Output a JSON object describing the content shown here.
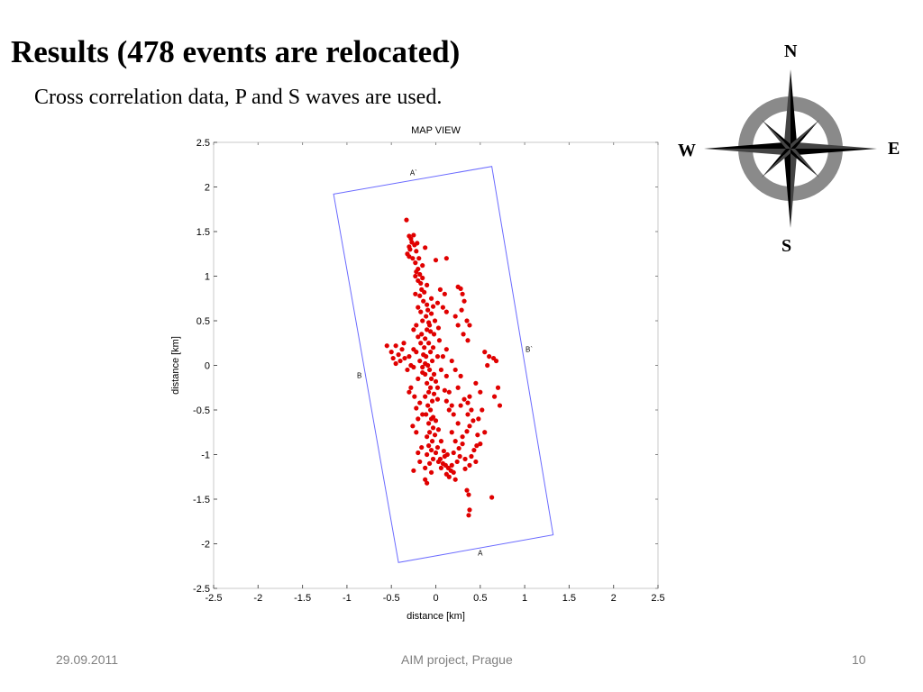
{
  "slide": {
    "title": "Results (478 events are relocated)",
    "subtitle": "Cross correlation data, P and S waves are used."
  },
  "compass": {
    "north": "N",
    "south": "S",
    "east": "E",
    "west": "W"
  },
  "footer": {
    "date": "29.09.2011",
    "project": "AIM project, Prague",
    "page": "10"
  },
  "chart_data": {
    "type": "scatter",
    "title": "MAP VIEW",
    "xlabel": "distance [km]",
    "ylabel": "distance [km]",
    "xlim": [
      -2.5,
      2.5
    ],
    "ylim": [
      -2.5,
      2.5
    ],
    "xticks": [
      "-2.5",
      "-2",
      "-1.5",
      "-1",
      "-0.5",
      "0",
      "0.5",
      "1",
      "1.5",
      "2",
      "2.5"
    ],
    "yticks": [
      "2.5",
      "2",
      "1.5",
      "1",
      "0.5",
      "0",
      "-0.5",
      "-1",
      "-1.5",
      "-2",
      "-2.5"
    ],
    "grid": false,
    "point_color": "#e00000",
    "box_color": "#6a6aff",
    "profile_box": [
      [
        -1.15,
        1.92
      ],
      [
        0.63,
        2.23
      ],
      [
        1.32,
        -1.9
      ],
      [
        -0.42,
        -2.21
      ]
    ],
    "box_labels": [
      {
        "text": "A`",
        "x": -0.25,
        "y": 2.13
      },
      {
        "text": "B`",
        "x": 1.05,
        "y": 0.15
      },
      {
        "text": "B",
        "x": -0.86,
        "y": -0.14
      },
      {
        "text": "A",
        "x": 0.5,
        "y": -2.13
      }
    ],
    "points": [
      [
        -0.33,
        1.63
      ],
      [
        -0.3,
        1.45
      ],
      [
        -0.28,
        1.42
      ],
      [
        -0.27,
        1.38
      ],
      [
        -0.25,
        1.46
      ],
      [
        -0.24,
        1.35
      ],
      [
        -0.29,
        1.3
      ],
      [
        -0.22,
        1.28
      ],
      [
        -0.3,
        1.22
      ],
      [
        -0.26,
        1.2
      ],
      [
        -0.23,
        1.15
      ],
      [
        -0.21,
        1.37
      ],
      [
        -0.19,
        1.2
      ],
      [
        -0.2,
        1.08
      ],
      [
        -0.22,
        1.05
      ],
      [
        -0.18,
        1.02
      ],
      [
        -0.15,
        0.98
      ],
      [
        -0.2,
        0.95
      ],
      [
        -0.17,
        0.92
      ],
      [
        -0.12,
        1.32
      ],
      [
        0.0,
        1.18
      ],
      [
        0.12,
        1.2
      ],
      [
        -0.16,
        0.85
      ],
      [
        -0.23,
        0.8
      ],
      [
        -0.18,
        0.78
      ],
      [
        -0.14,
        0.72
      ],
      [
        -0.2,
        0.65
      ],
      [
        -0.09,
        0.62
      ],
      [
        -0.05,
        0.58
      ],
      [
        -0.11,
        0.55
      ],
      [
        -0.08,
        0.48
      ],
      [
        -0.15,
        0.5
      ],
      [
        -0.22,
        0.45
      ],
      [
        -0.1,
        0.4
      ],
      [
        -0.16,
        0.35
      ],
      [
        -0.12,
        0.3
      ],
      [
        -0.08,
        0.25
      ],
      [
        -0.13,
        0.2
      ],
      [
        -0.06,
        0.15
      ],
      [
        -0.11,
        0.1
      ],
      [
        -0.04,
        0.05
      ],
      [
        -0.09,
        0.0
      ],
      [
        -0.07,
        -0.05
      ],
      [
        -0.12,
        -0.1
      ],
      [
        -0.05,
        -0.15
      ],
      [
        -0.1,
        -0.2
      ],
      [
        -0.06,
        -0.25
      ],
      [
        -0.08,
        -0.3
      ],
      [
        -0.12,
        -0.35
      ],
      [
        -0.04,
        -0.4
      ],
      [
        -0.09,
        -0.45
      ],
      [
        -0.06,
        -0.5
      ],
      [
        -0.11,
        -0.55
      ],
      [
        -0.05,
        -0.6
      ],
      [
        -0.08,
        -0.65
      ],
      [
        -0.03,
        -0.7
      ],
      [
        -0.07,
        -0.75
      ],
      [
        -0.1,
        -0.8
      ],
      [
        -0.04,
        -0.85
      ],
      [
        -0.08,
        -0.9
      ],
      [
        -0.05,
        -0.95
      ],
      [
        -0.1,
        -1.0
      ],
      [
        -0.03,
        -1.05
      ],
      [
        -0.07,
        -1.1
      ],
      [
        -0.12,
        -1.15
      ],
      [
        -0.05,
        -1.2
      ],
      [
        0.05,
        -1.05
      ],
      [
        0.08,
        -1.1
      ],
      [
        0.11,
        -1.12
      ],
      [
        0.14,
        -1.15
      ],
      [
        0.17,
        -1.18
      ],
      [
        0.2,
        -1.2
      ],
      [
        0.15,
        -1.25
      ],
      [
        0.22,
        -1.28
      ],
      [
        0.1,
        -1.02
      ],
      [
        0.0,
        -0.98
      ],
      [
        0.03,
        -1.08
      ],
      [
        -0.12,
        -1.28
      ],
      [
        -0.1,
        -1.32
      ],
      [
        0.35,
        -1.4
      ],
      [
        0.37,
        -1.45
      ],
      [
        0.38,
        -1.62
      ],
      [
        0.37,
        -1.68
      ],
      [
        0.63,
        -1.48
      ],
      [
        0.25,
        0.88
      ],
      [
        0.28,
        0.86
      ],
      [
        0.3,
        0.8
      ],
      [
        0.32,
        0.72
      ],
      [
        0.29,
        0.62
      ],
      [
        0.22,
        0.55
      ],
      [
        0.35,
        0.5
      ],
      [
        0.38,
        0.45
      ],
      [
        0.31,
        0.35
      ],
      [
        0.36,
        0.28
      ],
      [
        0.25,
        0.45
      ],
      [
        0.05,
        0.85
      ],
      [
        0.1,
        0.8
      ],
      [
        0.02,
        0.7
      ],
      [
        0.08,
        0.65
      ],
      [
        0.12,
        0.6
      ],
      [
        -0.01,
        0.5
      ],
      [
        0.03,
        0.42
      ],
      [
        -0.02,
        0.35
      ],
      [
        0.04,
        0.28
      ],
      [
        -0.45,
        0.22
      ],
      [
        -0.38,
        0.18
      ],
      [
        -0.42,
        0.12
      ],
      [
        -0.35,
        0.08
      ],
      [
        -0.4,
        0.05
      ],
      [
        -0.3,
        0.1
      ],
      [
        -0.28,
        0.0
      ],
      [
        -0.32,
        -0.05
      ],
      [
        -0.25,
        -0.02
      ],
      [
        -0.36,
        0.25
      ],
      [
        -0.55,
        0.22
      ],
      [
        -0.5,
        0.15
      ],
      [
        -0.48,
        0.08
      ],
      [
        -0.45,
        0.02
      ],
      [
        0.55,
        0.15
      ],
      [
        0.6,
        0.1
      ],
      [
        0.65,
        0.08
      ],
      [
        0.58,
        0.0
      ],
      [
        0.68,
        0.05
      ],
      [
        0.7,
        -0.25
      ],
      [
        0.66,
        -0.35
      ],
      [
        0.72,
        -0.45
      ],
      [
        0.5,
        -0.3
      ],
      [
        0.45,
        -0.2
      ],
      [
        0.38,
        -0.35
      ],
      [
        0.32,
        -0.38
      ],
      [
        0.36,
        -0.42
      ],
      [
        0.28,
        -0.45
      ],
      [
        0.4,
        -0.5
      ],
      [
        0.36,
        -0.55
      ],
      [
        0.42,
        -0.62
      ],
      [
        0.38,
        -0.68
      ],
      [
        0.35,
        -0.74
      ],
      [
        0.3,
        -0.8
      ],
      [
        0.46,
        -0.9
      ],
      [
        0.43,
        -0.95
      ],
      [
        0.4,
        -1.02
      ],
      [
        0.45,
        -1.08
      ],
      [
        0.38,
        -1.12
      ],
      [
        0.33,
        -1.16
      ],
      [
        0.3,
        -0.88
      ],
      [
        0.22,
        -0.85
      ],
      [
        0.18,
        -0.75
      ],
      [
        0.25,
        -0.65
      ],
      [
        0.2,
        -0.55
      ],
      [
        0.15,
        -0.5
      ],
      [
        0.18,
        -0.45
      ],
      [
        0.12,
        -0.4
      ],
      [
        0.15,
        -0.3
      ],
      [
        0.1,
        -0.28
      ],
      [
        0.02,
        -0.25
      ],
      [
        -0.15,
        -0.55
      ],
      [
        -0.2,
        -0.6
      ],
      [
        -0.22,
        -0.48
      ],
      [
        -0.18,
        -0.42
      ],
      [
        -0.24,
        -0.35
      ],
      [
        -0.3,
        -0.3
      ],
      [
        -0.28,
        -0.25
      ],
      [
        -0.2,
        -0.15
      ],
      [
        -0.15,
        -0.08
      ],
      [
        -0.18,
        0.05
      ],
      [
        -0.22,
        0.15
      ],
      [
        -0.17,
        0.25
      ],
      [
        -0.2,
        0.32
      ],
      [
        -0.25,
        0.4
      ],
      [
        -0.17,
        0.6
      ],
      [
        -0.23,
        1.0
      ],
      [
        -0.15,
        1.12
      ],
      [
        -0.1,
        0.9
      ],
      [
        -0.13,
        0.82
      ],
      [
        -0.32,
        1.25
      ],
      [
        -0.3,
        1.33
      ],
      [
        -0.25,
        0.18
      ],
      [
        -0.14,
        0.12
      ],
      [
        -0.12,
        0.02
      ],
      [
        -0.15,
        -0.02
      ],
      [
        -0.02,
        -0.1
      ],
      [
        0.0,
        -0.18
      ],
      [
        -0.02,
        -0.32
      ],
      [
        0.02,
        -0.38
      ],
      [
        -0.03,
        -0.58
      ],
      [
        0.0,
        -0.62
      ],
      [
        0.03,
        -0.72
      ],
      [
        -0.01,
        -0.78
      ],
      [
        0.06,
        -0.85
      ],
      [
        0.02,
        -0.92
      ],
      [
        0.09,
        -0.96
      ],
      [
        0.13,
        -1.0
      ],
      [
        0.06,
        -1.15
      ],
      [
        0.12,
        -1.22
      ],
      [
        0.18,
        -1.12
      ],
      [
        0.24,
        -1.08
      ],
      [
        0.27,
        -1.02
      ],
      [
        0.33,
        -1.05
      ],
      [
        0.26,
        -0.93
      ],
      [
        0.2,
        -0.98
      ],
      [
        -0.16,
        -0.92
      ],
      [
        -0.2,
        -0.98
      ],
      [
        -0.18,
        -1.08
      ],
      [
        -0.25,
        -1.18
      ],
      [
        -0.22,
        -0.75
      ],
      [
        -0.26,
        -0.68
      ],
      [
        0.08,
        0.1
      ],
      [
        0.12,
        0.18
      ],
      [
        0.18,
        0.05
      ],
      [
        0.22,
        -0.05
      ],
      [
        0.06,
        -0.05
      ],
      [
        0.12,
        -0.12
      ],
      [
        -0.07,
        0.45
      ],
      [
        -0.06,
        0.38
      ],
      [
        -0.1,
        0.68
      ],
      [
        -0.05,
        0.75
      ],
      [
        -0.03,
        0.66
      ],
      [
        0.02,
        0.1
      ],
      [
        -0.03,
        0.2
      ],
      [
        0.52,
        -0.5
      ],
      [
        0.48,
        -0.6
      ],
      [
        0.55,
        -0.75
      ],
      [
        0.5,
        -0.88
      ],
      [
        0.47,
        -0.78
      ],
      [
        0.25,
        -0.25
      ],
      [
        0.28,
        -0.12
      ]
    ]
  }
}
